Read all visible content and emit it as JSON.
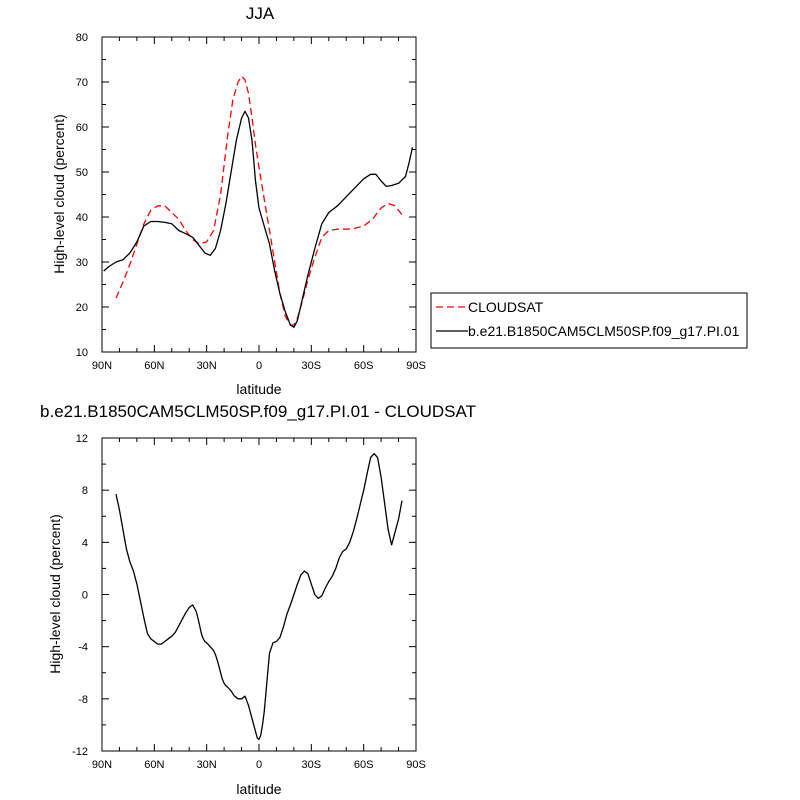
{
  "chart_data": [
    {
      "type": "line",
      "title": "JJA",
      "xlabel": "latitude",
      "ylabel": "High-level cloud (percent)",
      "xlim": [
        -90,
        90
      ],
      "ylim": [
        10,
        80
      ],
      "x_ticks": [
        -90,
        -60,
        -30,
        0,
        30,
        60,
        90
      ],
      "x_tick_labels": [
        "90N",
        "60N",
        "30N",
        "0",
        "30S",
        "60S",
        "90S"
      ],
      "y_ticks": [
        10,
        20,
        30,
        40,
        50,
        60,
        70,
        80
      ],
      "y_tick_labels": [
        "10",
        "20",
        "30",
        "40",
        "50",
        "60",
        "70",
        "80"
      ],
      "legend": {
        "position": "right",
        "entries": [
          "CLOUDSAT",
          "b.e21.B1850CAM5CLM50SP.f09_g17.PI.01"
        ]
      },
      "series": [
        {
          "name": "CLOUDSAT",
          "color": "#ff0000",
          "dash": "dashed",
          "x": [
            -82,
            -78,
            -74,
            -70,
            -66,
            -62,
            -58,
            -54,
            -50,
            -46,
            -42,
            -38,
            -34,
            -30,
            -26,
            -22,
            -18,
            -15,
            -12,
            -10,
            -8,
            -6,
            -4,
            -2,
            0,
            3,
            6,
            9,
            12,
            15,
            18,
            20,
            22,
            25,
            28,
            32,
            36,
            40,
            45,
            50,
            55,
            60,
            65,
            70,
            74,
            78,
            82
          ],
          "y": [
            22,
            25.5,
            29.5,
            34,
            38.5,
            41.5,
            42.5,
            42.5,
            41,
            39.5,
            37,
            35,
            34,
            34.5,
            37,
            45,
            58,
            66,
            70,
            71.3,
            70.5,
            67.5,
            62,
            56,
            51,
            44,
            37,
            30,
            23,
            18,
            16,
            16,
            17.5,
            21.5,
            26,
            31,
            35.5,
            37,
            37.3,
            37.3,
            37.5,
            38,
            39.5,
            42,
            43,
            42.5,
            40.5
          ]
        },
        {
          "name": "b.e21.B1850CAM5CLM50SP.f09_g17.PI.01",
          "color": "#000000",
          "dash": "solid",
          "x": [
            -89,
            -86,
            -82,
            -78,
            -74,
            -70,
            -66,
            -62,
            -58,
            -54,
            -50,
            -46,
            -42,
            -38,
            -34,
            -31,
            -28,
            -25,
            -22,
            -19,
            -16,
            -13,
            -10,
            -8,
            -6,
            -4,
            -2,
            0,
            3,
            6,
            9,
            12,
            15,
            18,
            20,
            22,
            25,
            28,
            32,
            36,
            40,
            45,
            50,
            55,
            60,
            64,
            67,
            70,
            73,
            76,
            80,
            84,
            86,
            88
          ],
          "y": [
            28,
            29,
            30,
            30.5,
            32,
            34.5,
            38,
            39,
            39,
            38.8,
            38.5,
            37,
            36.3,
            35.5,
            33.5,
            32,
            31.5,
            33,
            37,
            43,
            50,
            57,
            62,
            63.5,
            62,
            57,
            48,
            42,
            38,
            34,
            28,
            23,
            19,
            16,
            15.5,
            17,
            22,
            27,
            33,
            38.5,
            41,
            42.5,
            44.5,
            46.5,
            48.5,
            49.5,
            49.5,
            48,
            46.8,
            47,
            47.5,
            49,
            52,
            55.5
          ]
        }
      ]
    },
    {
      "type": "line",
      "title": "b.e21.B1850CAM5CLM50SP.f09_g17.PI.01 - CLOUDSAT",
      "xlabel": "latitude",
      "ylabel": "High-level cloud (percent)",
      "xlim": [
        -90,
        90
      ],
      "ylim": [
        -12,
        12
      ],
      "x_ticks": [
        -90,
        -60,
        -30,
        0,
        30,
        60,
        90
      ],
      "x_tick_labels": [
        "90N",
        "60N",
        "30N",
        "0",
        "30S",
        "60S",
        "90S"
      ],
      "y_ticks": [
        -12,
        -8,
        -4,
        0,
        4,
        8,
        12
      ],
      "y_tick_labels": [
        "-12",
        "-8",
        "-4",
        "0",
        "4",
        "8",
        "12"
      ],
      "series": [
        {
          "color": "#000000",
          "dash": "solid",
          "x": [
            -82,
            -80,
            -78,
            -76,
            -74,
            -72,
            -70,
            -68,
            -66,
            -64,
            -62,
            -60,
            -58,
            -56,
            -54,
            -52,
            -50,
            -48,
            -46,
            -44,
            -42,
            -40,
            -38,
            -36,
            -35,
            -34,
            -33,
            -32,
            -31,
            -30,
            -28,
            -26,
            -25,
            -24,
            -23,
            -22,
            -21,
            -20,
            -19,
            -18,
            -16,
            -14,
            -12,
            -10,
            -8,
            -6,
            -4,
            -2,
            -1,
            0,
            1,
            2,
            3,
            4,
            5,
            6,
            8,
            10,
            12,
            14,
            16,
            18,
            20,
            22,
            24,
            26,
            28,
            30,
            32,
            34,
            36,
            38,
            40,
            42,
            44,
            46,
            48,
            50,
            52,
            54,
            56,
            58,
            60,
            62,
            64,
            66,
            68,
            70,
            72,
            74,
            76,
            78,
            80,
            82
          ],
          "y": [
            7.7,
            6.5,
            5.0,
            3.5,
            2.5,
            1.8,
            0.8,
            -0.5,
            -1.8,
            -3.0,
            -3.4,
            -3.6,
            -3.8,
            -3.8,
            -3.6,
            -3.4,
            -3.2,
            -2.9,
            -2.4,
            -1.9,
            -1.4,
            -1.0,
            -0.8,
            -1.3,
            -1.8,
            -2.4,
            -3.0,
            -3.4,
            -3.6,
            -3.7,
            -4.0,
            -4.3,
            -4.6,
            -5.0,
            -5.5,
            -6.0,
            -6.5,
            -6.8,
            -7.0,
            -7.1,
            -7.4,
            -7.8,
            -8.0,
            -8.0,
            -7.8,
            -8.5,
            -9.5,
            -10.5,
            -11.0,
            -11.1,
            -10.8,
            -10.0,
            -9.0,
            -7.5,
            -6.0,
            -4.5,
            -3.7,
            -3.6,
            -3.3,
            -2.5,
            -1.5,
            -0.8,
            0,
            0.8,
            1.5,
            1.8,
            1.6,
            0.8,
            0,
            -0.3,
            -0.1,
            0.5,
            1.0,
            1.4,
            2.0,
            2.8,
            3.3,
            3.5,
            4.0,
            4.8,
            5.8,
            6.9,
            8.0,
            9.3,
            10.5,
            10.8,
            10.5,
            9.0,
            7.0,
            5.0,
            3.8,
            4.8,
            5.8,
            7.2
          ]
        }
      ]
    }
  ]
}
